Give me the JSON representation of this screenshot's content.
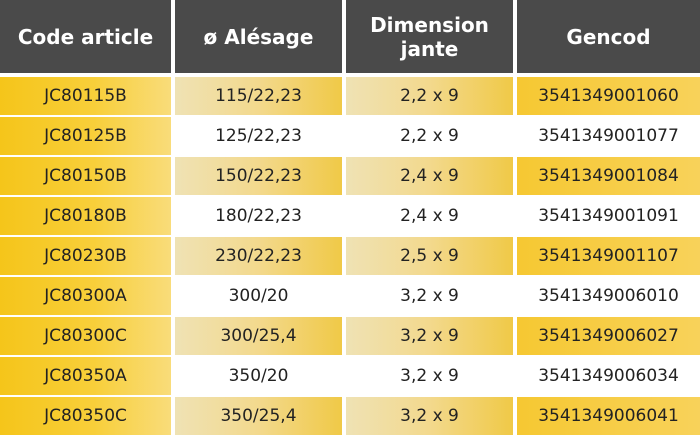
{
  "headers": {
    "code": "Code article",
    "alesage": "ø Alésage",
    "dimension_line1": "Dimension",
    "dimension_line2": "jante",
    "gencod": "Gencod"
  },
  "rows": [
    {
      "code": "JC80115B",
      "alesage": "115/22,23",
      "dimension": "2,2 x 9",
      "gencod": "3541349001060"
    },
    {
      "code": "JC80125B",
      "alesage": "125/22,23",
      "dimension": "2,2 x 9",
      "gencod": "3541349001077"
    },
    {
      "code": "JC80150B",
      "alesage": "150/22,23",
      "dimension": "2,4 x 9",
      "gencod": "3541349001084"
    },
    {
      "code": "JC80180B",
      "alesage": "180/22,23",
      "dimension": "2,4 x 9",
      "gencod": "3541349001091"
    },
    {
      "code": "JC80230B",
      "alesage": "230/22,23",
      "dimension": "2,5 x 9",
      "gencod": "3541349001107"
    },
    {
      "code": "JC80300A",
      "alesage": "300/20",
      "dimension": "3,2 x 9",
      "gencod": "3541349006010"
    },
    {
      "code": "JC80300C",
      "alesage": "300/25,4",
      "dimension": "3,2 x 9",
      "gencod": "3541349006027"
    },
    {
      "code": "JC80350A",
      "alesage": "350/20",
      "dimension": "3,2 x 9",
      "gencod": "3541349006034"
    },
    {
      "code": "JC80350C",
      "alesage": "350/25,4",
      "dimension": "3,2 x 9",
      "gencod": "3541349006041"
    }
  ],
  "colors": {
    "header_bg": "#4a4a4a",
    "header_text": "#ffffff",
    "accent_yellow": "#f5c51a",
    "body_text": "#222222"
  }
}
